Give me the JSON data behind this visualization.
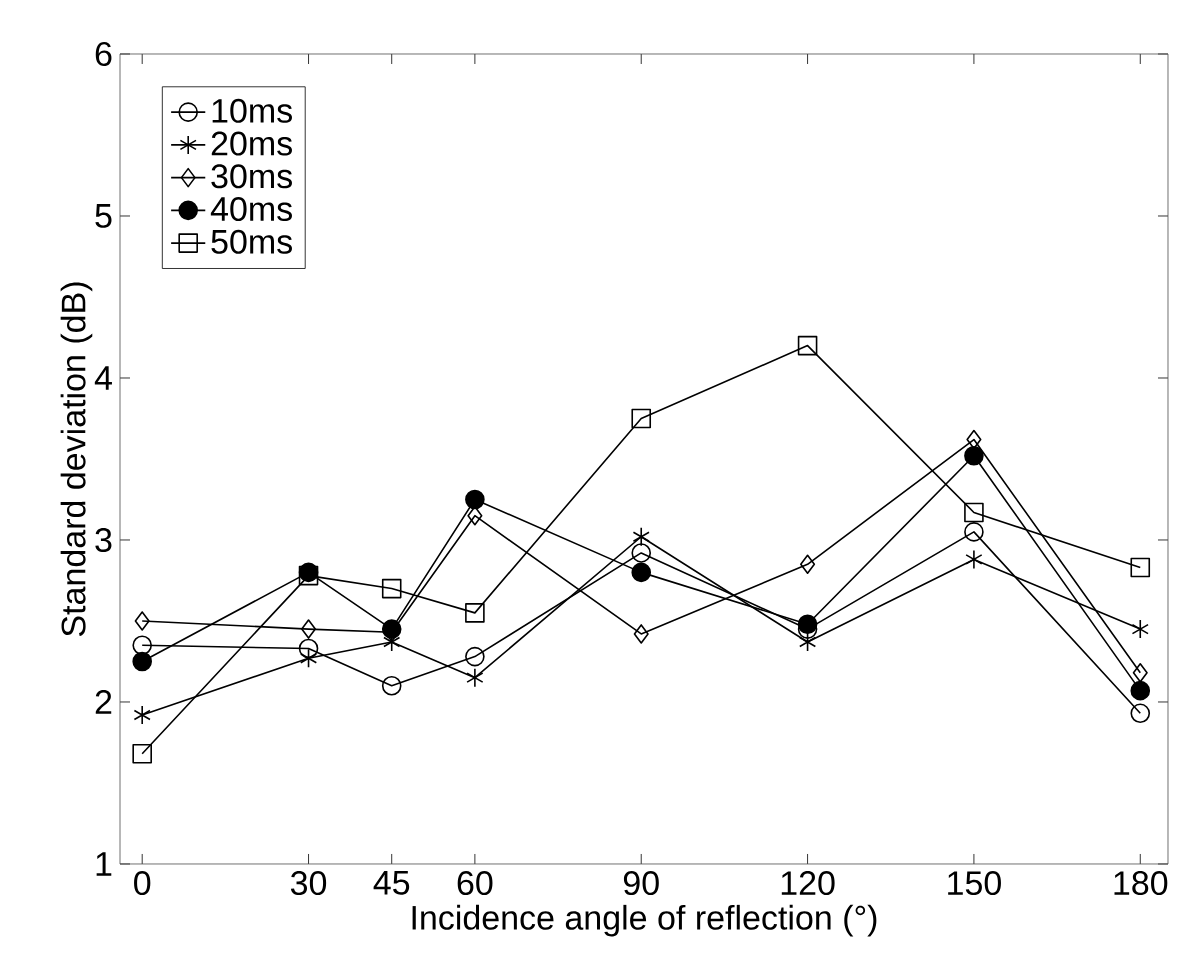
{
  "chart_data": {
    "type": "line",
    "xlabel": "Incidence angle of reflection (°)",
    "ylabel": "Standard deviation (dB)",
    "x": [
      0,
      30,
      45,
      60,
      90,
      120,
      150,
      180
    ],
    "xlim": [
      -4,
      185
    ],
    "ylim": [
      1,
      6
    ],
    "xticks": [
      0,
      30,
      45,
      60,
      90,
      120,
      150,
      180
    ],
    "yticks": [
      1,
      2,
      3,
      4,
      5,
      6
    ],
    "legend": "top left",
    "grid": false,
    "series": [
      {
        "name": "10ms",
        "color": "#000000",
        "marker": "circle",
        "values": [
          2.35,
          2.33,
          2.1,
          2.28,
          2.92,
          2.45,
          3.05,
          1.93
        ]
      },
      {
        "name": "20ms",
        "color": "#000000",
        "marker": "cross",
        "values": [
          1.92,
          2.27,
          2.37,
          2.15,
          3.02,
          2.37,
          2.88,
          2.45
        ]
      },
      {
        "name": "30ms",
        "color": "#000000",
        "marker": "diamond",
        "values": [
          2.5,
          2.45,
          2.43,
          3.15,
          2.42,
          2.85,
          3.62,
          2.18
        ]
      },
      {
        "name": "40ms",
        "color": "#000000",
        "marker": "filled circle",
        "values": [
          2.25,
          2.8,
          2.45,
          3.25,
          2.8,
          2.48,
          3.52,
          2.07
        ]
      },
      {
        "name": "50ms",
        "color": "#000000",
        "marker": "square",
        "values": [
          1.68,
          2.78,
          2.7,
          2.55,
          3.75,
          4.2,
          3.17,
          2.83
        ]
      }
    ]
  }
}
